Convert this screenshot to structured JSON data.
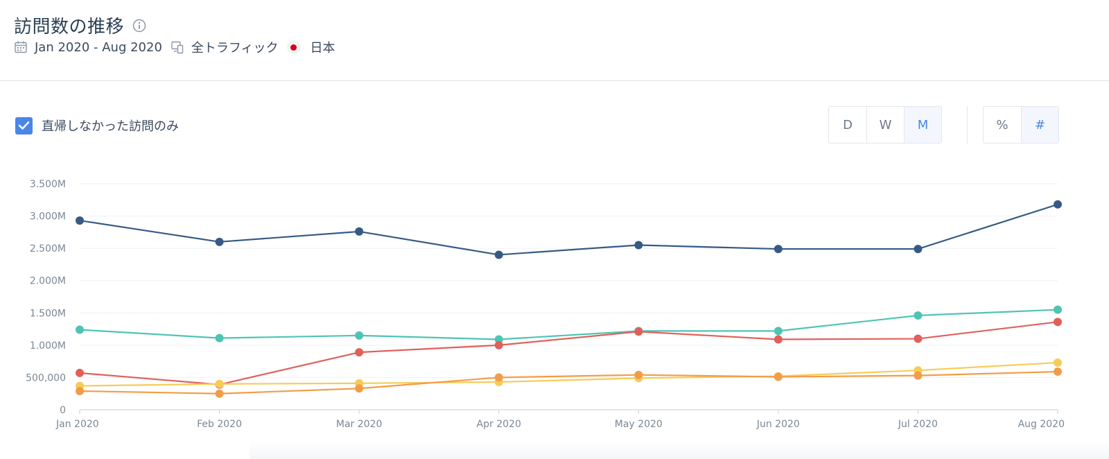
{
  "header": {
    "title": "訪問数の推移",
    "info_icon": "info-icon",
    "date_range": "Jan 2020 - Aug 2020",
    "calendar_icon": "calendar-icon",
    "traffic": "全トラフィック",
    "devices_icon": "devices-icon",
    "country": "日本",
    "country_flag": "japan-flag-icon"
  },
  "filter": {
    "checkbox_label": "直帰しなかった訪問のみ",
    "checked": true
  },
  "granularity": {
    "options": [
      "D",
      "W",
      "M"
    ],
    "selected": "M"
  },
  "metric_mode": {
    "options": [
      "%",
      "#"
    ],
    "selected": "#"
  },
  "colors": {
    "accent": "#4a86e8",
    "grid": "#eef0f3",
    "axis": "#c9ced4"
  },
  "chart_data": {
    "type": "line",
    "title": "訪問数の推移",
    "xlabel": "",
    "ylabel": "",
    "ylim": [
      0,
      3500000
    ],
    "yticks": [
      0,
      500000,
      1000000,
      1500000,
      2000000,
      2500000,
      3000000,
      3500000
    ],
    "ytick_labels": [
      "0",
      "500,000",
      "1.000M",
      "1.500M",
      "2.000M",
      "2.500M",
      "3.000M",
      "3.500M"
    ],
    "categories": [
      "Jan 2020",
      "Feb 2020",
      "Mar 2020",
      "Apr 2020",
      "May 2020",
      "Jun 2020",
      "Jul 2020",
      "Aug 2020"
    ],
    "grid": true,
    "legend": "none",
    "series": [
      {
        "name": "series-1",
        "color": "#365a85",
        "values": [
          2930000,
          2600000,
          2760000,
          2400000,
          2550000,
          2490000,
          2490000,
          3180000
        ]
      },
      {
        "name": "series-2",
        "color": "#4ec4b3",
        "values": [
          1240000,
          1110000,
          1150000,
          1090000,
          1220000,
          1220000,
          1460000,
          1550000
        ]
      },
      {
        "name": "series-3",
        "color": "#e0605a",
        "values": [
          570000,
          390000,
          890000,
          1000000,
          1210000,
          1090000,
          1100000,
          1360000
        ]
      },
      {
        "name": "series-4",
        "color": "#f6cc58",
        "values": [
          370000,
          400000,
          410000,
          430000,
          490000,
          520000,
          610000,
          730000
        ]
      },
      {
        "name": "series-5",
        "color": "#f39c48",
        "values": [
          290000,
          250000,
          330000,
          500000,
          540000,
          510000,
          530000,
          590000
        ]
      }
    ]
  }
}
